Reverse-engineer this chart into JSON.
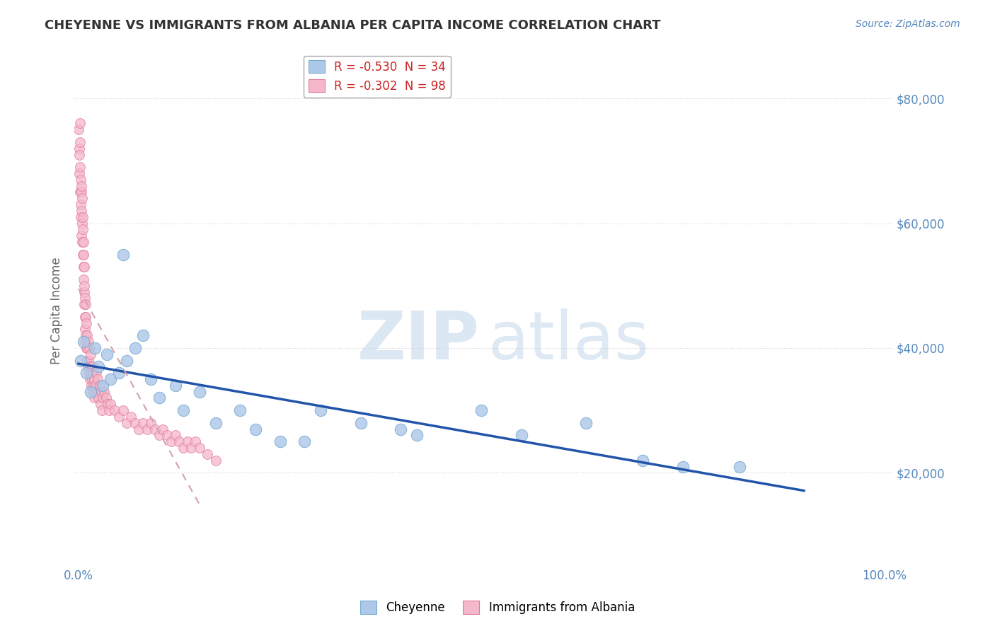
{
  "title": "CHEYENNE VS IMMIGRANTS FROM ALBANIA PER CAPITA INCOME CORRELATION CHART",
  "source": "Source: ZipAtlas.com",
  "ylabel": "Per Capita Income",
  "legend_entry1": "R = -0.530  N = 34",
  "legend_entry2": "R = -0.302  N = 98",
  "legend_label1": "Cheyenne",
  "legend_label2": "Immigrants from Albania",
  "blue_color": "#adc8e8",
  "blue_edge": "#7aaad0",
  "pink_color": "#f5b8cb",
  "pink_edge": "#e07898",
  "line_blue": "#2255aa",
  "line_pink_color": "#d4a0b0",
  "background": "#ffffff",
  "grid_color": "#cccccc",
  "title_color": "#333333",
  "axis_label_color": "#5588bb",
  "cheyenne_x": [
    0.3,
    0.6,
    1.0,
    1.5,
    2.0,
    2.5,
    3.0,
    3.5,
    4.0,
    5.0,
    5.5,
    6.0,
    7.0,
    8.0,
    9.0,
    10.0,
    12.0,
    13.0,
    15.0,
    17.0,
    20.0,
    22.0,
    25.0,
    28.0,
    30.0,
    35.0,
    40.0,
    42.0,
    50.0,
    55.0,
    63.0,
    70.0,
    75.0,
    82.0
  ],
  "cheyenne_y": [
    38000,
    41000,
    36000,
    33000,
    40000,
    37000,
    34000,
    39000,
    35000,
    36000,
    55000,
    38000,
    40000,
    42000,
    35000,
    32000,
    34000,
    30000,
    33000,
    28000,
    30000,
    27000,
    25000,
    25000,
    30000,
    28000,
    27000,
    26000,
    30000,
    26000,
    28000,
    22000,
    21000,
    21000
  ],
  "albania_x": [
    0.05,
    0.08,
    0.1,
    0.12,
    0.15,
    0.18,
    0.2,
    0.22,
    0.25,
    0.28,
    0.3,
    0.32,
    0.35,
    0.38,
    0.4,
    0.42,
    0.45,
    0.48,
    0.5,
    0.52,
    0.55,
    0.58,
    0.6,
    0.62,
    0.65,
    0.68,
    0.7,
    0.72,
    0.75,
    0.78,
    0.8,
    0.82,
    0.85,
    0.88,
    0.9,
    0.92,
    0.95,
    0.98,
    1.0,
    1.05,
    1.1,
    1.15,
    1.2,
    1.25,
    1.3,
    1.35,
    1.4,
    1.45,
    1.5,
    1.55,
    1.6,
    1.65,
    1.7,
    1.75,
    1.8,
    1.85,
    1.9,
    1.95,
    2.0,
    2.1,
    2.2,
    2.3,
    2.4,
    2.5,
    2.6,
    2.7,
    2.8,
    2.9,
    3.0,
    3.2,
    3.4,
    3.6,
    3.8,
    4.0,
    4.5,
    5.0,
    5.5,
    6.0,
    6.5,
    7.0,
    7.5,
    8.0,
    8.5,
    9.0,
    9.5,
    10.0,
    10.5,
    11.0,
    11.5,
    12.0,
    12.5,
    13.0,
    13.5,
    14.0,
    14.5,
    15.0,
    16.0,
    17.0
  ],
  "albania_y": [
    75000,
    72000,
    68000,
    71000,
    65000,
    73000,
    76000,
    69000,
    63000,
    67000,
    61000,
    65000,
    58000,
    62000,
    66000,
    60000,
    57000,
    64000,
    61000,
    55000,
    59000,
    53000,
    57000,
    51000,
    55000,
    49000,
    53000,
    47000,
    50000,
    45000,
    48000,
    43000,
    47000,
    41000,
    45000,
    42000,
    40000,
    44000,
    38000,
    42000,
    40000,
    37000,
    41000,
    38000,
    36000,
    40000,
    37000,
    35000,
    39000,
    36000,
    34000,
    37000,
    35000,
    33000,
    36000,
    34000,
    32000,
    35000,
    33000,
    34000,
    36000,
    33000,
    35000,
    32000,
    34000,
    31000,
    33000,
    30000,
    32000,
    33000,
    32000,
    31000,
    30000,
    31000,
    30000,
    29000,
    30000,
    28000,
    29000,
    28000,
    27000,
    28000,
    27000,
    28000,
    27000,
    26000,
    27000,
    26000,
    25000,
    26000,
    25000,
    24000,
    25000,
    24000,
    25000,
    24000,
    23000,
    22000
  ]
}
